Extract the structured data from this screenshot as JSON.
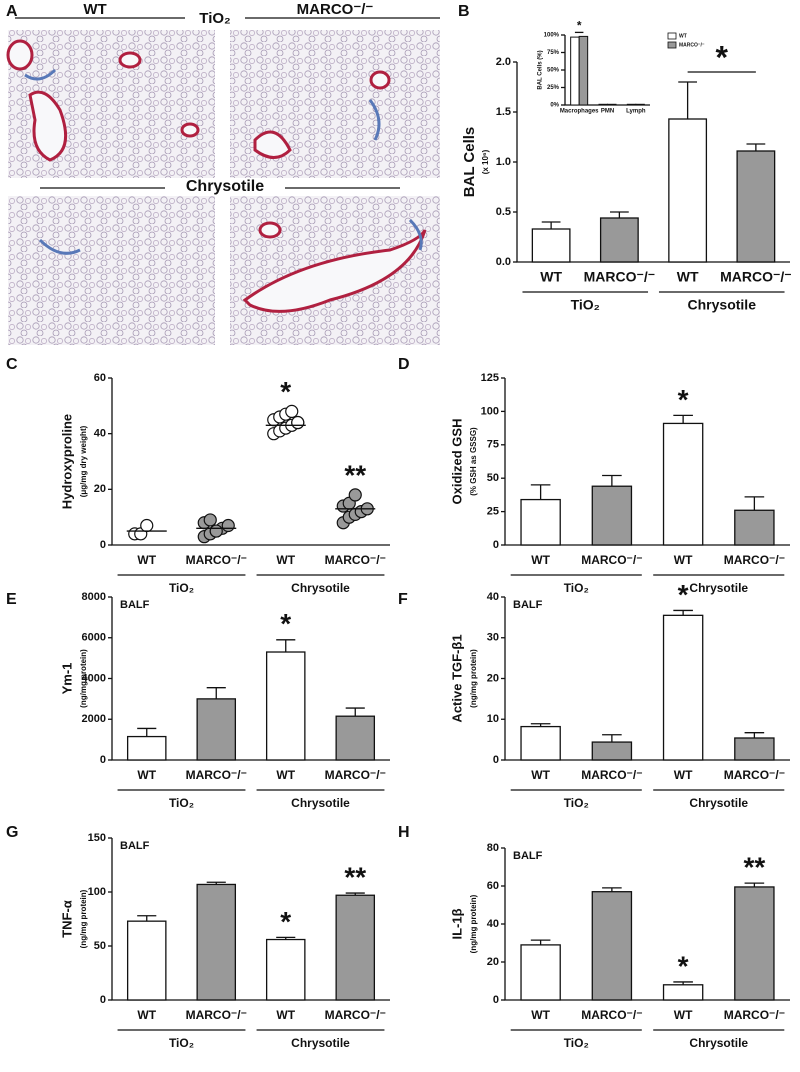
{
  "histology": {
    "panel": "A",
    "columns": [
      "WT",
      "MARCO⁻/⁻"
    ],
    "rows": [
      "TiO₂",
      "Chrysotile"
    ]
  },
  "chart_data": [
    {
      "type": "bar",
      "panel": "B",
      "ylabel": "BAL Cells",
      "ylabel_sub": "(x 10⁶)",
      "categories": [
        "WT",
        "MARCO⁻/⁻",
        "WT",
        "MARCO⁻/⁻"
      ],
      "groups": [
        "TiO₂",
        "Chrysotile"
      ],
      "values": [
        0.33,
        0.44,
        1.43,
        1.11
      ],
      "errors": [
        0.07,
        0.06,
        0.37,
        0.07
      ],
      "colors": [
        "#ffffff",
        "#999999",
        "#ffffff",
        "#999999"
      ],
      "ylim": [
        0,
        2
      ],
      "yticks": [
        {
          "value": 0,
          "label": "0.0"
        },
        {
          "value": 0.5,
          "label": "0.5"
        },
        {
          "value": 1,
          "label": "1.0"
        },
        {
          "value": 1.5,
          "label": "1.5"
        },
        {
          "value": 2,
          "label": "2.0"
        }
      ],
      "comparison": "*",
      "inset": {
        "type": "grouped_bar",
        "ylabel": "BAL Cells (%)",
        "categories": [
          "Macrophages",
          "PMN",
          "Lymph"
        ],
        "series": [
          {
            "name": "WT",
            "color": "#ffffff",
            "values": [
              97,
              1,
              1
            ]
          },
          {
            "name": "MARCO⁻/⁻",
            "color": "#999999",
            "values": [
              98,
              1,
              1
            ]
          }
        ],
        "ylim": [
          0,
          100
        ],
        "yticks": [
          {
            "value": 0,
            "label": "0%"
          },
          {
            "value": 25,
            "label": "25%"
          },
          {
            "value": 50,
            "label": "50%"
          },
          {
            "value": 75,
            "label": "75%"
          },
          {
            "value": 100,
            "label": "100%"
          }
        ],
        "comparison": "*"
      }
    },
    {
      "type": "dot",
      "panel": "C",
      "ylabel": "Hydroxyproline",
      "ylabel_sub": "(μg/mg dry weight)",
      "categories": [
        "WT",
        "MARCO⁻/⁻",
        "WT",
        "MARCO⁻/⁻"
      ],
      "groups": [
        "TiO₂",
        "Chrysotile"
      ],
      "values": [
        [
          4,
          4,
          7
        ],
        [
          3,
          4,
          5,
          6,
          7,
          8,
          9,
          5
        ],
        [
          40,
          41,
          42,
          43,
          44,
          45,
          46,
          47,
          48,
          44
        ],
        [
          8,
          10,
          11,
          12,
          13,
          14,
          15,
          18
        ]
      ],
      "means": [
        5,
        6,
        43,
        13
      ],
      "colors": [
        "#ffffff",
        "#999999",
        "#ffffff",
        "#999999"
      ],
      "ylim": [
        0,
        60
      ],
      "yticks": [
        0,
        20,
        40,
        60
      ],
      "significance": [
        null,
        null,
        "*",
        "**"
      ]
    },
    {
      "type": "bar",
      "panel": "D",
      "ylabel": "Oxidized GSH",
      "ylabel_sub": "(% GSH as GSSG)",
      "categories": [
        "WT",
        "MARCO⁻/⁻",
        "WT",
        "MARCO⁻/⁻"
      ],
      "groups": [
        "TiO₂",
        "Chrysotile"
      ],
      "values": [
        34,
        44,
        91,
        26
      ],
      "errors": [
        11,
        8,
        6,
        10
      ],
      "colors": [
        "#ffffff",
        "#999999",
        "#ffffff",
        "#999999"
      ],
      "ylim": [
        0,
        125
      ],
      "yticks": [
        0,
        25,
        50,
        75,
        100,
        125
      ],
      "significance": [
        null,
        null,
        "*",
        null
      ]
    },
    {
      "type": "bar",
      "panel": "E",
      "note": "BALF",
      "ylabel": "Ym-1",
      "ylabel_sub": "(ng/mg protein)",
      "categories": [
        "WT",
        "MARCO⁻/⁻",
        "WT",
        "MARCO⁻/⁻"
      ],
      "groups": [
        "TiO₂",
        "Chrysotile"
      ],
      "values": [
        1150,
        3000,
        5300,
        2150
      ],
      "errors": [
        400,
        550,
        600,
        400
      ],
      "colors": [
        "#ffffff",
        "#999999",
        "#ffffff",
        "#999999"
      ],
      "ylim": [
        0,
        8000
      ],
      "yticks": [
        0,
        2000,
        4000,
        6000,
        8000
      ],
      "significance": [
        null,
        null,
        "*",
        null
      ]
    },
    {
      "type": "bar",
      "panel": "F",
      "note": "BALF",
      "ylabel": "Active TGF-β1",
      "ylabel_sub": "(ng/mg protein)",
      "categories": [
        "WT",
        "MARCO⁻/⁻",
        "WT",
        "MARCO⁻/⁻"
      ],
      "groups": [
        "TiO₂",
        "Chrysotile"
      ],
      "values": [
        8.2,
        4.4,
        35.5,
        5.4
      ],
      "errors": [
        0.7,
        1.8,
        1.2,
        1.3
      ],
      "colors": [
        "#ffffff",
        "#999999",
        "#ffffff",
        "#999999"
      ],
      "ylim": [
        0,
        40
      ],
      "yticks": [
        0,
        10,
        20,
        30,
        40
      ],
      "significance": [
        null,
        null,
        "*",
        null
      ]
    },
    {
      "type": "bar",
      "panel": "G",
      "note": "BALF",
      "ylabel": "TNF-α",
      "ylabel_sub": "(ng/mg protein)",
      "categories": [
        "WT",
        "MARCO⁻/⁻",
        "WT",
        "MARCO⁻/⁻"
      ],
      "groups": [
        "TiO₂",
        "Chrysotile"
      ],
      "values": [
        73,
        107,
        56,
        97
      ],
      "errors": [
        5,
        2,
        2,
        2
      ],
      "colors": [
        "#ffffff",
        "#999999",
        "#ffffff",
        "#999999"
      ],
      "ylim": [
        0,
        150
      ],
      "yticks": [
        0,
        50,
        100,
        150
      ],
      "significance": [
        null,
        null,
        "*",
        "**"
      ]
    },
    {
      "type": "bar",
      "panel": "H",
      "note": "BALF",
      "ylabel": "IL-1β",
      "ylabel_sub": "(ng/mg protein)",
      "categories": [
        "WT",
        "MARCO⁻/⁻",
        "WT",
        "MARCO⁻/⁻"
      ],
      "groups": [
        "TiO₂",
        "Chrysotile"
      ],
      "values": [
        29,
        57,
        8,
        59.5
      ],
      "errors": [
        2.5,
        2,
        1.5,
        2
      ],
      "colors": [
        "#ffffff",
        "#999999",
        "#ffffff",
        "#999999"
      ],
      "ylim": [
        0,
        80
      ],
      "yticks": [
        0,
        20,
        40,
        60,
        80
      ],
      "significance": [
        null,
        null,
        "*",
        "**"
      ]
    }
  ]
}
